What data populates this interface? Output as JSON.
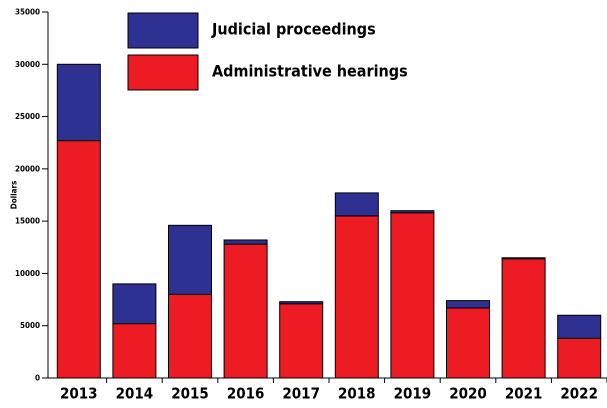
{
  "chart_data": {
    "type": "stacked_bar",
    "y_label": "Dollars",
    "categories": [
      "2013",
      "2014",
      "2015",
      "2016",
      "2017",
      "2018",
      "2019",
      "2020",
      "2021",
      "2022"
    ],
    "series": [
      {
        "name": "Judicial proceedings",
        "color": "#2e3192",
        "values": [
          7300,
          3800,
          6600,
          400,
          200,
          2200,
          200,
          700,
          100,
          2200
        ]
      },
      {
        "name": "Administrative hearings",
        "color": "#ed1c24",
        "values": [
          22700,
          5200,
          8000,
          12800,
          7100,
          15500,
          15800,
          6700,
          11400,
          3800
        ]
      }
    ],
    "ylim": [
      0,
      35000
    ],
    "yticks": [
      0,
      5000,
      10000,
      15000,
      20000,
      25000,
      30000,
      35000
    ]
  }
}
